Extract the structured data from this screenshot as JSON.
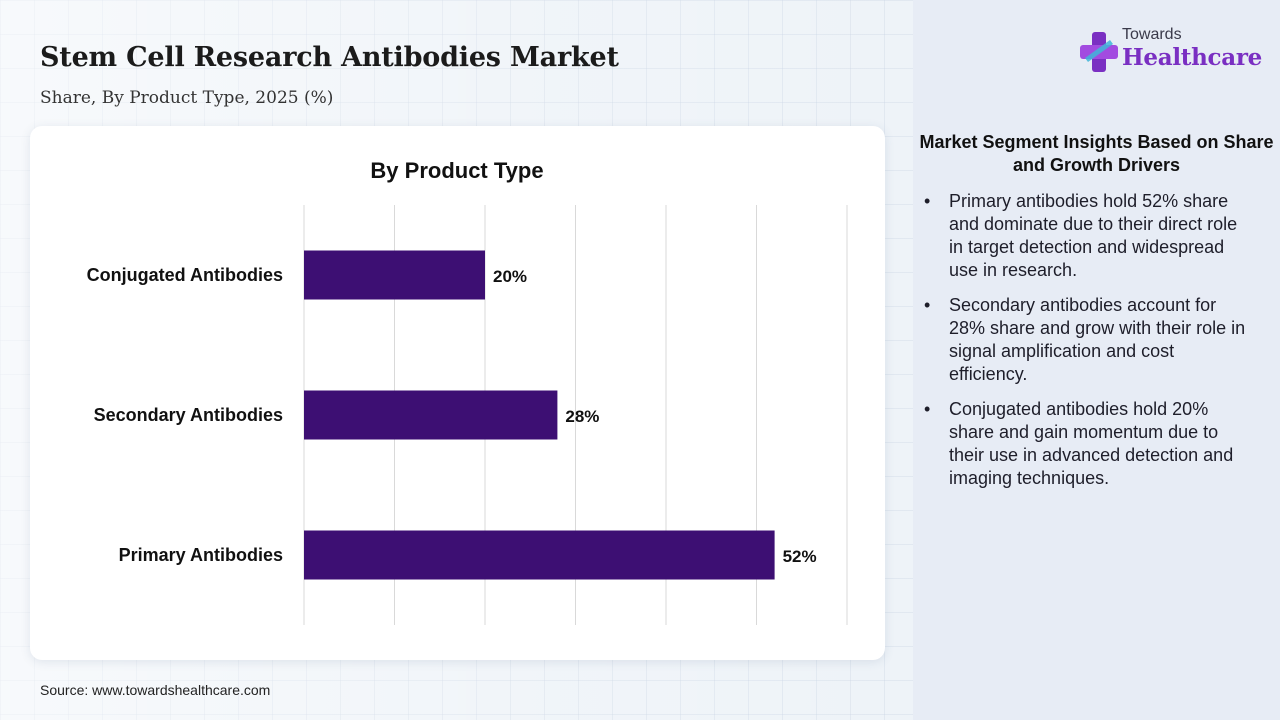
{
  "header": {
    "title": "Stem Cell Research Antibodies Market",
    "subtitle": "Share, By Product Type, 2025 (%)"
  },
  "logo": {
    "line1": "Towards",
    "line2": "Healthcare"
  },
  "colors": {
    "bar": "#3d0f73",
    "brand": "#7a2fc2",
    "grid": "#d9d9d9"
  },
  "chart_data": {
    "type": "bar",
    "orientation": "horizontal",
    "title": "By Product Type",
    "categories": [
      "Conjugated Antibodies",
      "Secondary Antibodies",
      "Primary Antibodies"
    ],
    "values": [
      20,
      28,
      52
    ],
    "value_labels": [
      "20%",
      "28%",
      "52%"
    ],
    "xlim": [
      0,
      60
    ],
    "grid": true,
    "xlabel": "",
    "ylabel": ""
  },
  "panel": {
    "heading": "Market Segment Insights Based on Share and Growth Drivers",
    "bullet_char": "•",
    "insights": [
      "Primary antibodies hold 52% share and dominate due to their direct role in target detection and widespread use in research.",
      "Secondary antibodies account for 28% share and grow with their role in signal amplification and cost efficiency.",
      "Conjugated antibodies hold 20% share and gain momentum due to their use in advanced detection and imaging techniques."
    ]
  },
  "footer": {
    "source": "Source: www.towardshealthcare.com"
  }
}
